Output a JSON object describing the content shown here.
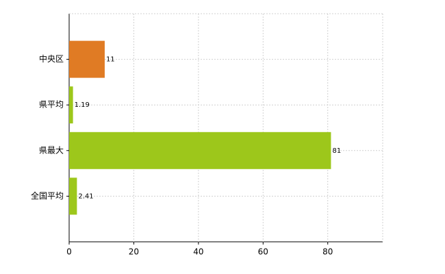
{
  "chart_data": {
    "type": "hbar",
    "categories": [
      "中央区",
      "県平均",
      "県最大",
      "全国平均"
    ],
    "values": [
      11,
      1.19,
      81,
      2.41
    ],
    "colors": [
      "#e07b24",
      "#9dc71b",
      "#9dc71b",
      "#9dc71b"
    ],
    "xlim": [
      0,
      97
    ],
    "xticks": [
      0,
      20,
      40,
      60,
      80
    ],
    "grid": true
  }
}
